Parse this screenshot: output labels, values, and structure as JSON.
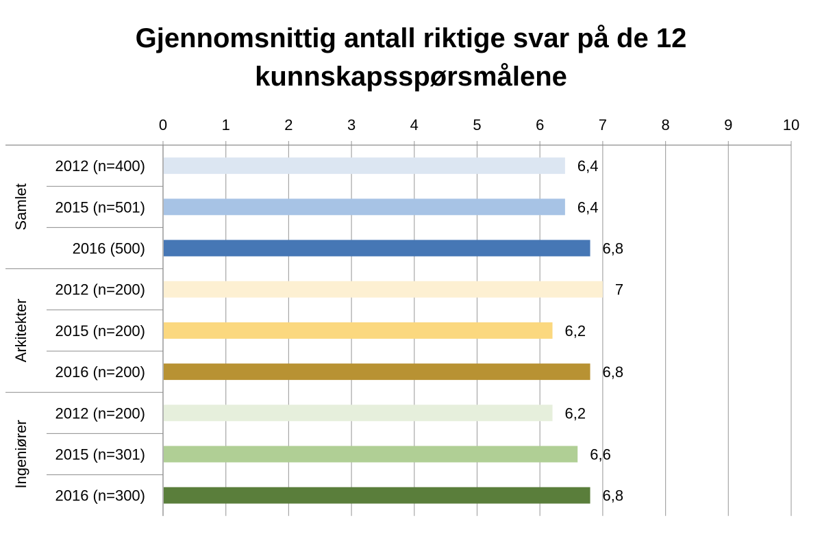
{
  "chart_data": {
    "type": "bar",
    "orientation": "horizontal",
    "title_line1": "Gjennomsnittig antall riktige svar på de 12",
    "title_line2": "kunnskapsspørsmålene",
    "xlim": [
      0,
      10
    ],
    "x_ticks": [
      "0",
      "1",
      "2",
      "3",
      "4",
      "5",
      "6",
      "7",
      "8",
      "9",
      "10"
    ],
    "grid": true,
    "axis_position": "top",
    "groups": [
      {
        "name": "Samlet",
        "bars": [
          {
            "label": "2012 (n=400)",
            "value": 6.4,
            "value_label": "6,4",
            "color": "#dce6f2"
          },
          {
            "label": "2015 (n=501)",
            "value": 6.4,
            "value_label": "6,4",
            "color": "#a7c3e5"
          },
          {
            "label": "2016 (500)",
            "value": 6.8,
            "value_label": "6,8",
            "color": "#4677b5"
          }
        ]
      },
      {
        "name": "Arkitekter",
        "bars": [
          {
            "label": "2012 (n=200)",
            "value": 7.0,
            "value_label": "7",
            "color": "#fdf0d2"
          },
          {
            "label": "2015 (n=200)",
            "value": 6.2,
            "value_label": "6,2",
            "color": "#fbd87f"
          },
          {
            "label": "2016 (n=200)",
            "value": 6.8,
            "value_label": "6,8",
            "color": "#b89233"
          }
        ]
      },
      {
        "name": "Ingeniører",
        "bars": [
          {
            "label": "2012 (n=200)",
            "value": 6.2,
            "value_label": "6,2",
            "color": "#e6efdc"
          },
          {
            "label": "2015 (n=301)",
            "value": 6.6,
            "value_label": "6,6",
            "color": "#b0cf95"
          },
          {
            "label": "2016 (n=300)",
            "value": 6.8,
            "value_label": "6,8",
            "color": "#5a7e3b"
          }
        ]
      }
    ]
  }
}
